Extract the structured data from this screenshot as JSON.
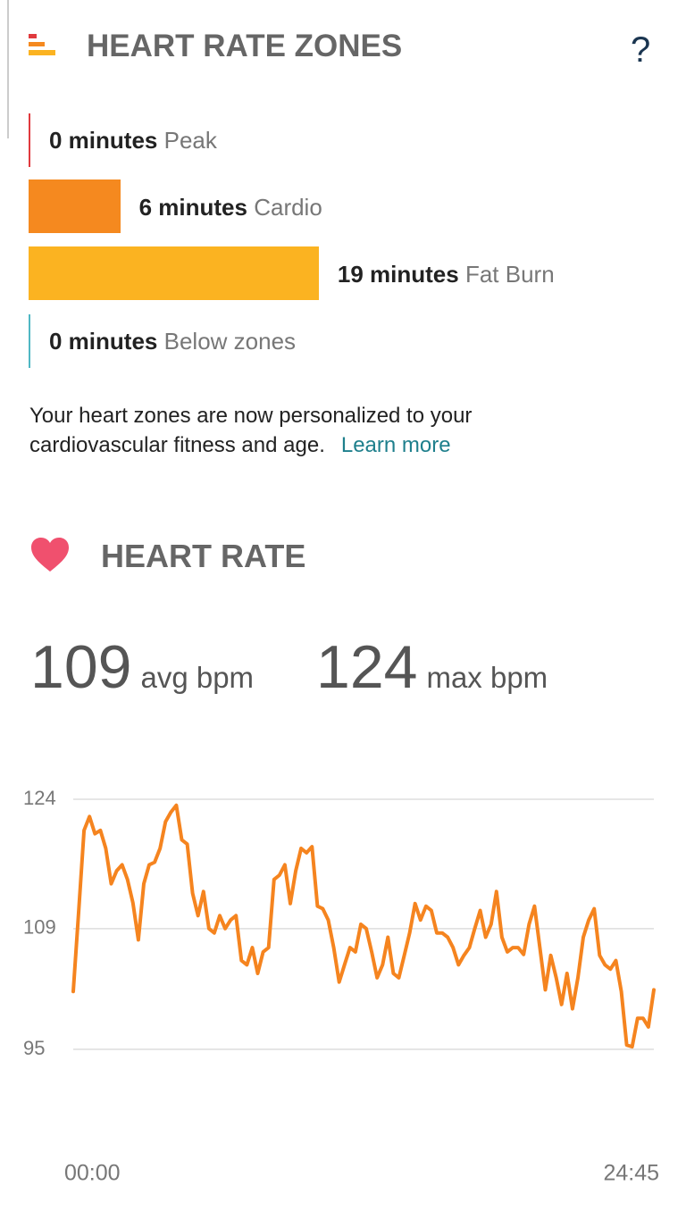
{
  "header": {
    "title": "HEART RATE ZONES",
    "help": "?"
  },
  "zones": [
    {
      "value": 0,
      "value_label": "0 minutes",
      "name": "Peak",
      "color": "#e03a3e"
    },
    {
      "value": 6,
      "value_label": "6 minutes",
      "name": "Cardio",
      "color": "#f5891f"
    },
    {
      "value": 19,
      "value_label": "19 minutes",
      "name": "Fat Burn",
      "color": "#fbb321"
    },
    {
      "value": 0,
      "value_label": "0 minutes",
      "name": "Below zones",
      "color": "#4fb7c4"
    }
  ],
  "note": {
    "text": "Your heart zones are now personalized to your cardiovascular fitness and age.",
    "link": "Learn more"
  },
  "heart_rate": {
    "title": "HEART RATE",
    "stats": [
      {
        "value": 109,
        "unit": "avg bpm"
      },
      {
        "value": 124,
        "unit": "max bpm"
      }
    ]
  },
  "chart_data": {
    "type": "line",
    "color": "#f5841f",
    "values": [
      101.7,
      111,
      120.4,
      122,
      120,
      120.4,
      118.3,
      114.2,
      115.7,
      116.4,
      114.7,
      112,
      107.7,
      114.2,
      116.4,
      116.7,
      118.3,
      121.4,
      122.5,
      123.3,
      119.3,
      118.8,
      113.1,
      110.5,
      113.3,
      109,
      108.5,
      110.5,
      109,
      110,
      110.5,
      105.3,
      104.8,
      106.8,
      103.8,
      106.3,
      106.8,
      114.7,
      115.2,
      116.4,
      111.9,
      115.7,
      118.3,
      117.8,
      118.5,
      111.6,
      111.3,
      110,
      106.8,
      102.8,
      104.8,
      106.8,
      106.3,
      109.5,
      109,
      106.3,
      103.3,
      104.8,
      108,
      103.8,
      103.3,
      105.9,
      108.5,
      111.9,
      110,
      111.6,
      111.1,
      108.5,
      108.5,
      108,
      106.8,
      104.8,
      105.9,
      106.8,
      109,
      111.1,
      108,
      109.5,
      113.3,
      108,
      106.3,
      106.8,
      106.8,
      106,
      109.5,
      111.6,
      106.8,
      101.9,
      105.9,
      103.3,
      100.2,
      103.8,
      99.7,
      103.3,
      108,
      110,
      111.3,
      105.9,
      104.8,
      104.3,
      105.3,
      101.7,
      95.5,
      95.3,
      98.6,
      98.6,
      97.6,
      101.9
    ],
    "ylim": [
      95,
      124
    ],
    "yticks": [
      95,
      109,
      124
    ],
    "grid": true,
    "x_labels": [
      "00:00",
      "24:45"
    ]
  }
}
